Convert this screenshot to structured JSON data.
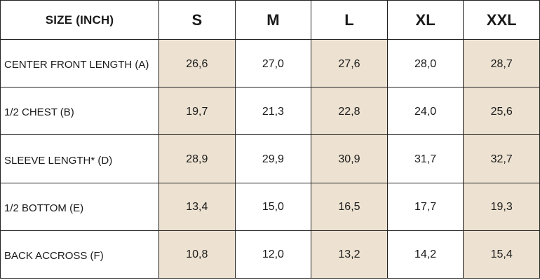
{
  "table": {
    "label_header": "SIZE (INCH)",
    "sizes": [
      "S",
      "M",
      "L",
      "XL",
      "XXL"
    ],
    "shaded_color": "#ede2d1",
    "rows": [
      {
        "label": "CENTER FRONT LENGTH (A)",
        "values": [
          "26,6",
          "27,0",
          "27,6",
          "28,0",
          "28,7"
        ]
      },
      {
        "label": "1/2 CHEST (B)",
        "values": [
          "19,7",
          "21,3",
          "22,8",
          "24,0",
          "25,6"
        ]
      },
      {
        "label": "SLEEVE LENGTH* (D)",
        "values": [
          "28,9",
          "29,9",
          "30,9",
          "31,7",
          "32,7"
        ]
      },
      {
        "label": "1/2 BOTTOM (E)",
        "values": [
          "13,4",
          "15,0",
          "16,5",
          "17,7",
          "19,3"
        ]
      },
      {
        "label": "BACK ACCROSS (F)",
        "values": [
          "10,8",
          "12,0",
          "13,2",
          "14,2",
          "15,4"
        ]
      }
    ]
  }
}
